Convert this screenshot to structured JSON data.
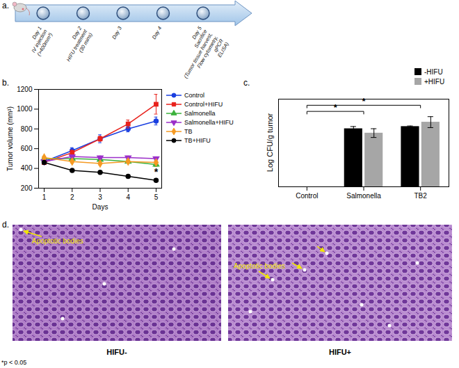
{
  "panel_labels": [
    "a.",
    "b.",
    "c.",
    "d."
  ],
  "timeline": {
    "steps": [
      [
        "Day 1",
        "IV injection",
        "(>400mm³)"
      ],
      [
        "Day 2",
        "HIFU treatment",
        "(30 mins)"
      ],
      [
        "Day 3"
      ],
      [
        "Day 4"
      ],
      [
        "Day 5",
        "Sacrifice",
        "(Tumor tissue harvest,",
        "Flow cytometry,",
        "qPCR",
        "ELISA)"
      ]
    ]
  },
  "chart_data": [
    {
      "type": "line",
      "x_label": "Days",
      "y_label": "Tumor volume (mm³)",
      "x": [
        1,
        2,
        3,
        4,
        5
      ],
      "xlim": [
        0.8,
        5.2
      ],
      "xticks": [
        1,
        2,
        3,
        4,
        5
      ],
      "ylim": [
        200,
        1200
      ],
      "yticks": [
        200,
        400,
        600,
        800,
        1000,
        1200
      ],
      "legend": "right",
      "series": [
        {
          "name": "Control",
          "color": "#1a3fe0",
          "marker": "circle",
          "values": [
            470,
            580,
            700,
            800,
            880
          ],
          "errors": [
            15,
            30,
            40,
            30,
            40
          ]
        },
        {
          "name": "Control+HIFU",
          "color": "#e8211b",
          "marker": "square",
          "values": [
            460,
            560,
            700,
            850,
            1050
          ],
          "errors": [
            20,
            25,
            25,
            40,
            100
          ]
        },
        {
          "name": "Salmonella",
          "color": "#3cb23c",
          "marker": "triangle",
          "values": [
            500,
            500,
            490,
            470,
            440
          ],
          "errors": [
            15,
            15,
            15,
            15,
            20
          ]
        },
        {
          "name": "Salmonella+HIFU",
          "color": "#9b2fc9",
          "marker": "triangle-down",
          "values": [
            470,
            520,
            510,
            510,
            500
          ],
          "errors": [
            15,
            15,
            15,
            15,
            15
          ]
        },
        {
          "name": "TB",
          "color": "#f59a23",
          "marker": "diamond",
          "values": [
            510,
            470,
            450,
            470,
            460
          ],
          "errors": [
            15,
            15,
            15,
            15,
            15
          ]
        },
        {
          "name": "TB+HIFU",
          "color": "#000000",
          "marker": "circle",
          "values": [
            460,
            380,
            360,
            320,
            280
          ],
          "errors": [
            15,
            10,
            10,
            10,
            15
          ]
        }
      ],
      "annotations": [
        {
          "series": "TB+HIFU",
          "x": 5,
          "text": "*"
        }
      ]
    },
    {
      "type": "bar",
      "y_label": "Log CFU/g tumor",
      "categories": [
        "Control",
        "Salmonella",
        "TB2"
      ],
      "ylim": [
        0,
        8
      ],
      "tick_labels": "x",
      "legend": "top-right",
      "series": [
        {
          "name": "-HIFU",
          "color": "#000000",
          "values": [
            0,
            5.3,
            5.5
          ],
          "errors": [
            0,
            0.2,
            0.05
          ]
        },
        {
          "name": "+HIFU",
          "color": "#a6a6a6",
          "values": [
            0,
            4.9,
            5.9
          ],
          "errors": [
            0,
            0.4,
            0.5
          ]
        }
      ],
      "annotations": [
        {
          "from": "Control",
          "to": "Salmonella",
          "text": "*"
        },
        {
          "from": "Control",
          "to": "TB2",
          "text": "*"
        }
      ]
    }
  ],
  "images": {
    "annotation": "Apoptotic bodies",
    "labels": [
      "HIFU-",
      "HIFU+"
    ]
  },
  "footnote": "*p < 0.05"
}
